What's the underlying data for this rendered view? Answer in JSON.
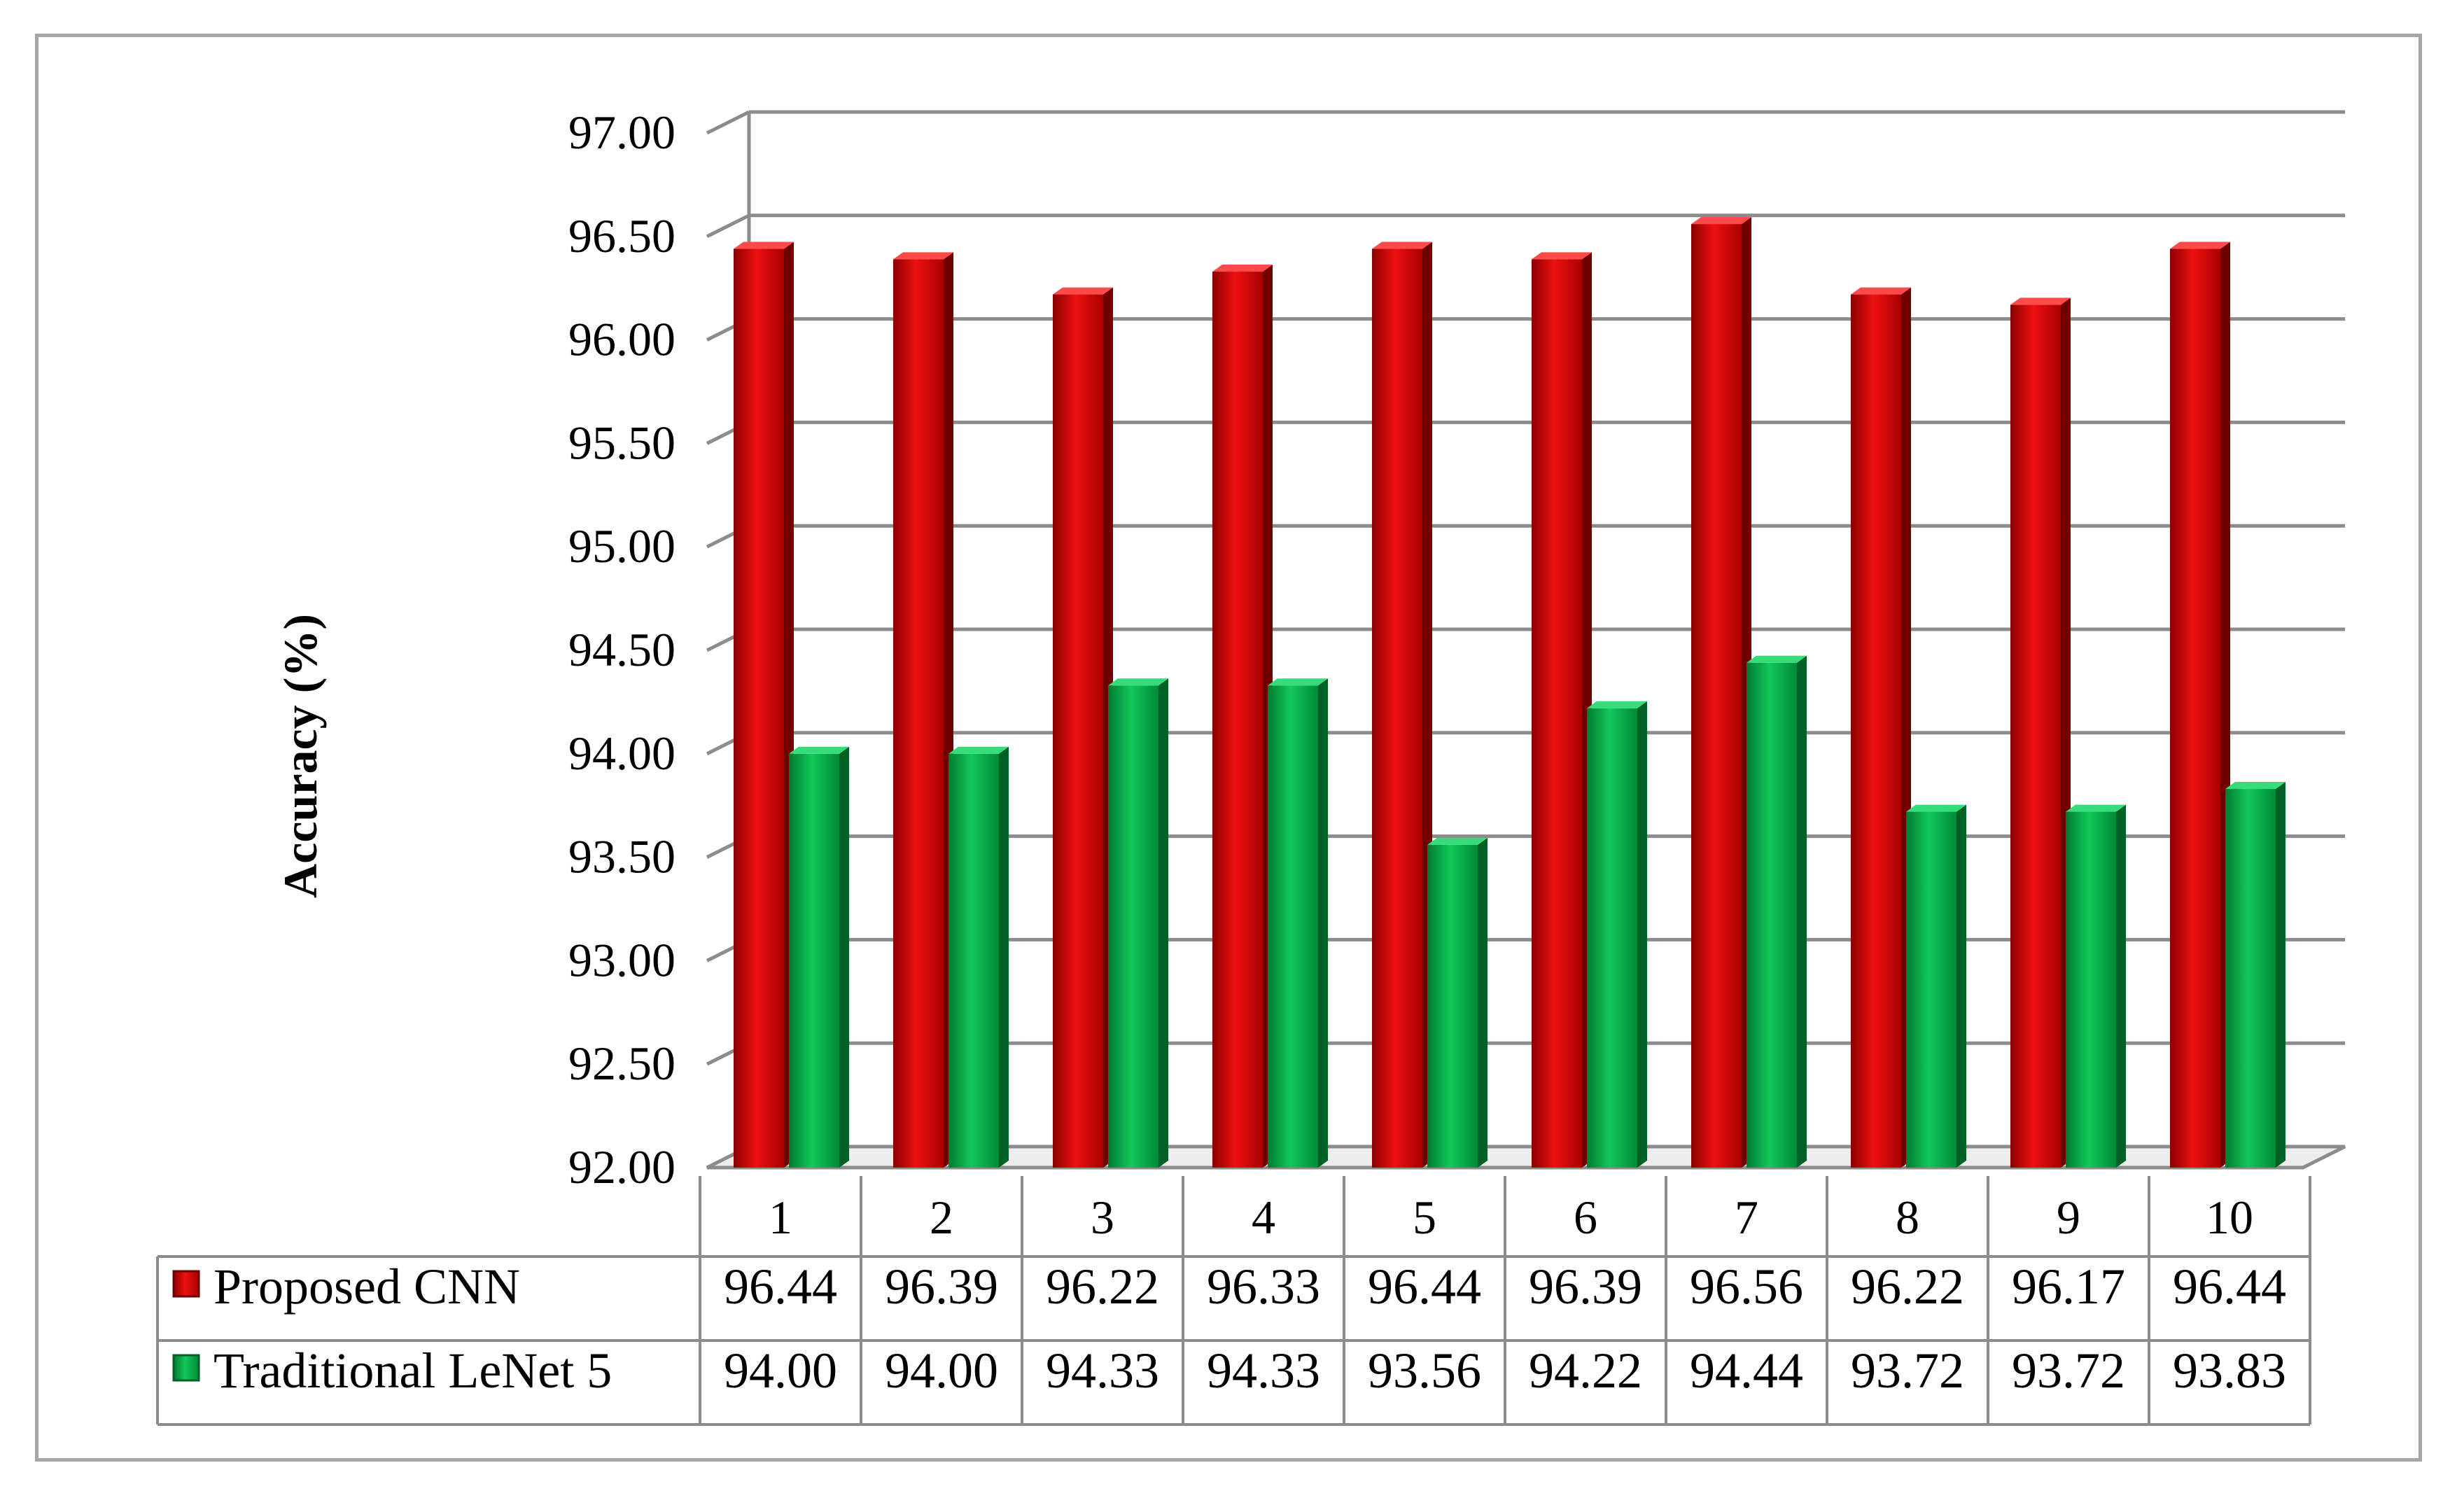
{
  "chart_data": {
    "type": "bar",
    "categories": [
      "1",
      "2",
      "3",
      "4",
      "5",
      "6",
      "7",
      "8",
      "9",
      "10"
    ],
    "series": [
      {
        "name": "Proposed CNN",
        "values": [
          96.44,
          96.39,
          96.22,
          96.33,
          96.44,
          96.39,
          96.56,
          96.22,
          96.17,
          96.44
        ],
        "color": "#e10000"
      },
      {
        "name": "Traditional LeNet 5",
        "values": [
          94.0,
          94.0,
          94.33,
          94.33,
          93.56,
          94.22,
          94.44,
          93.72,
          93.72,
          93.83
        ],
        "color": "#00b050"
      }
    ],
    "ylabel": "Accuracy (%)",
    "xlabel": "",
    "ylim": [
      92.0,
      97.0
    ],
    "yticks": [
      "92.00",
      "92.50",
      "93.00",
      "93.50",
      "94.00",
      "94.50",
      "95.00",
      "95.50",
      "96.00",
      "96.50",
      "97.00"
    ],
    "table_values": [
      [
        "96.44",
        "96.39",
        "96.22",
        "96.33",
        "96.44",
        "96.39",
        "96.56",
        "96.22",
        "96.17",
        "96.44"
      ],
      [
        "94.00",
        "94.00",
        "94.33",
        "94.33",
        "93.56",
        "94.22",
        "94.44",
        "93.72",
        "93.72",
        "93.83"
      ]
    ],
    "grid": true,
    "legend": "data-table"
  }
}
